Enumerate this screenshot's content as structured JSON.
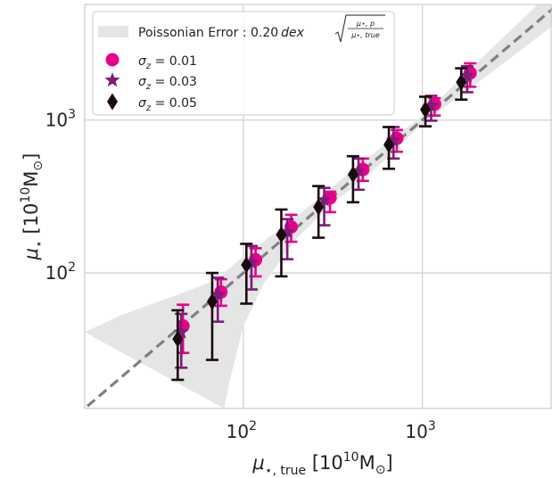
{
  "chart_data": {
    "type": "scatter",
    "x_scale": "log",
    "y_scale": "log",
    "xlim": [
      13,
      5300
    ],
    "ylim": [
      13,
      5700
    ],
    "grid": true,
    "legend_placement": "top-left",
    "x_ticks": [
      {
        "value": 100,
        "base": "10",
        "exp": "2"
      },
      {
        "value": 1000,
        "base": "10",
        "exp": "3"
      }
    ],
    "y_ticks": [
      {
        "value": 100,
        "base": "10",
        "exp": "2"
      },
      {
        "value": 1000,
        "base": "10",
        "exp": "3"
      }
    ],
    "xlabel": {
      "mu": "μ",
      "sub": "⋆, true",
      "unit_open": "[10",
      "unit_exp": "10",
      "unit_rest": "M",
      "unit_sun": "⊙",
      "unit_close": "]"
    },
    "ylabel": {
      "mu": "μ",
      "sub": "⋆",
      "unit_open": "[10",
      "unit_exp": "10",
      "unit_rest": "M",
      "unit_sun": "⊙",
      "unit_close": "]"
    },
    "band": {
      "label_prefix": "Poissonian Error : 0.20",
      "label_dex": "dex",
      "label_num": "μ⋆, p",
      "label_den": "μ⋆, true",
      "color": "#e5e5e5",
      "upper": [
        [
          13,
          41
        ],
        [
          20,
          52
        ],
        [
          30,
          62
        ],
        [
          50,
          77
        ],
        [
          70,
          90
        ],
        [
          100,
          128
        ],
        [
          200,
          236
        ],
        [
          400,
          460
        ],
        [
          700,
          780
        ],
        [
          1000,
          1060
        ],
        [
          2000,
          2350
        ],
        [
          5300,
          7000
        ]
      ],
      "lower": [
        [
          78,
          13
        ],
        [
          85,
          21
        ],
        [
          100,
          45
        ],
        [
          130,
          85
        ],
        [
          200,
          170
        ],
        [
          300,
          270
        ],
        [
          500,
          440
        ],
        [
          700,
          630
        ],
        [
          1000,
          950
        ],
        [
          2000,
          1720
        ],
        [
          5300,
          4100
        ]
      ]
    },
    "one_to_one_line": {
      "color": "#808080",
      "style": "dashed"
    },
    "series": [
      {
        "name": "σz = 0.01",
        "name_sigma": "σ",
        "name_z": "z",
        "name_value": " = 0.01",
        "marker": "circle",
        "color": "#e8008a",
        "points": [
          {
            "x": 46,
            "y": 45,
            "lo": 30,
            "hi": 62
          },
          {
            "x": 75,
            "y": 75,
            "lo": 61,
            "hi": 91
          },
          {
            "x": 117,
            "y": 122,
            "lo": 95,
            "hi": 145
          },
          {
            "x": 185,
            "y": 200,
            "lo": 160,
            "hi": 240
          },
          {
            "x": 305,
            "y": 310,
            "lo": 250,
            "hi": 340
          },
          {
            "x": 465,
            "y": 475,
            "lo": 400,
            "hi": 560
          },
          {
            "x": 720,
            "y": 760,
            "lo": 620,
            "hi": 860
          },
          {
            "x": 1170,
            "y": 1270,
            "lo": 1070,
            "hi": 1390
          },
          {
            "x": 1850,
            "y": 2030,
            "lo": 1650,
            "hi": 2350
          }
        ]
      },
      {
        "name": "σz = 0.03",
        "name_sigma": "σ",
        "name_z": "z",
        "name_value": " = 0.03",
        "marker": "star",
        "color": "#7a1f75",
        "points": [
          {
            "x": 45,
            "y": 41,
            "lo": 24,
            "hi": 54
          },
          {
            "x": 72,
            "y": 72,
            "lo": 48,
            "hi": 93
          },
          {
            "x": 111,
            "y": 117,
            "lo": 78,
            "hi": 150
          },
          {
            "x": 176,
            "y": 185,
            "lo": 123,
            "hi": 225
          },
          {
            "x": 283,
            "y": 300,
            "lo": 205,
            "hi": 360
          },
          {
            "x": 440,
            "y": 465,
            "lo": 350,
            "hi": 560
          },
          {
            "x": 690,
            "y": 735,
            "lo": 560,
            "hi": 900
          },
          {
            "x": 1120,
            "y": 1240,
            "lo": 990,
            "hi": 1440
          },
          {
            "x": 1780,
            "y": 1950,
            "lo": 1520,
            "hi": 2250
          }
        ]
      },
      {
        "name": "σz = 0.05",
        "name_sigma": "σ",
        "name_z": "z",
        "name_value": " = 0.05",
        "marker": "diamond",
        "color": "#1a0a0f",
        "points": [
          {
            "x": 43,
            "y": 37,
            "lo": 20,
            "hi": 57
          },
          {
            "x": 67,
            "y": 65,
            "lo": 27,
            "hi": 100
          },
          {
            "x": 104,
            "y": 113,
            "lo": 63,
            "hi": 155
          },
          {
            "x": 163,
            "y": 178,
            "lo": 95,
            "hi": 260
          },
          {
            "x": 263,
            "y": 270,
            "lo": 170,
            "hi": 370
          },
          {
            "x": 410,
            "y": 440,
            "lo": 290,
            "hi": 580
          },
          {
            "x": 650,
            "y": 690,
            "lo": 480,
            "hi": 900
          },
          {
            "x": 1040,
            "y": 1170,
            "lo": 910,
            "hi": 1420
          },
          {
            "x": 1650,
            "y": 1770,
            "lo": 1360,
            "hi": 2180
          }
        ]
      }
    ]
  }
}
